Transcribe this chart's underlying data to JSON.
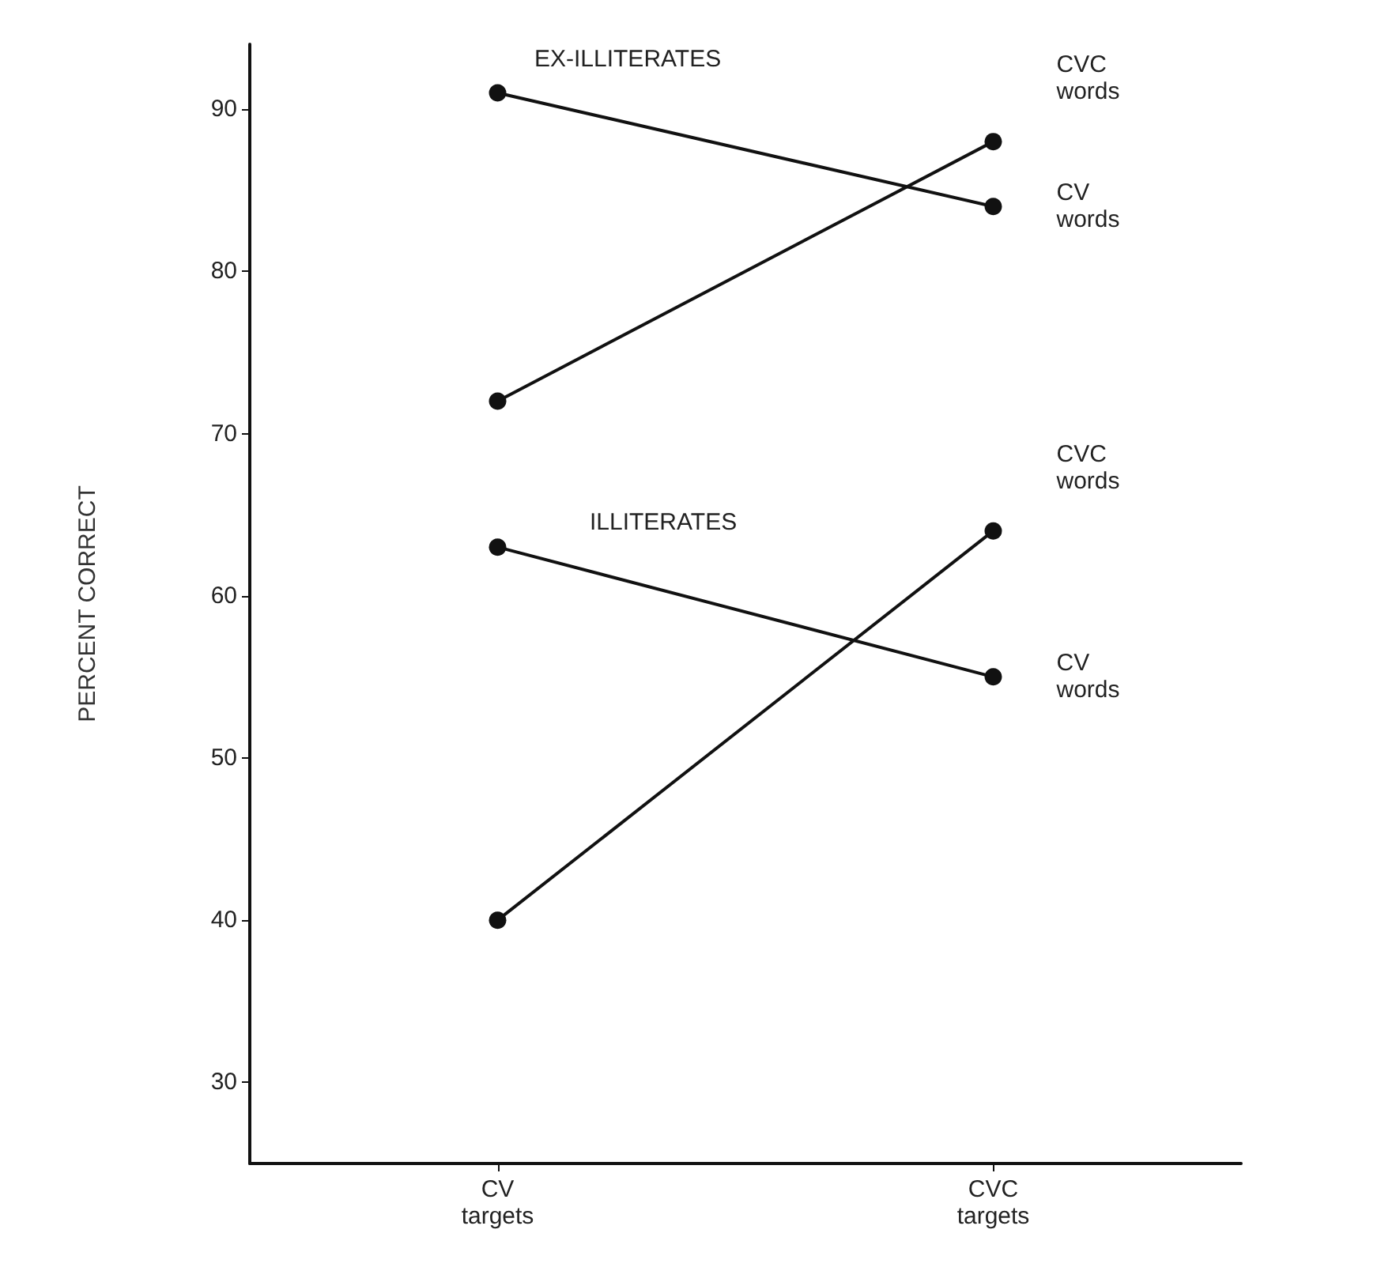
{
  "chart_data": {
    "type": "line",
    "ylabel": "PERCENT CORRECT",
    "categories": [
      "CV targets",
      "CVC targets"
    ],
    "series": [
      {
        "name": "CV words",
        "color": "#111111",
        "values": [
          91,
          84
        ]
      },
      {
        "name": "CVC words",
        "color": "#111111",
        "values": [
          72,
          88
        ]
      },
      {
        "name": "CV words",
        "color": "#111111",
        "values": [
          63,
          55
        ]
      },
      {
        "name": "CVC words",
        "color": "#111111",
        "values": [
          40,
          64
        ]
      }
    ],
    "ylim": [
      25,
      94
    ],
    "yticks": [
      30,
      40,
      50,
      60,
      70,
      80,
      90
    ],
    "grid": false,
    "legend": false,
    "marker": "circle",
    "line_style": "solid",
    "annotations": [
      "EX-ILLITERATES",
      "ILLITERATES"
    ]
  }
}
